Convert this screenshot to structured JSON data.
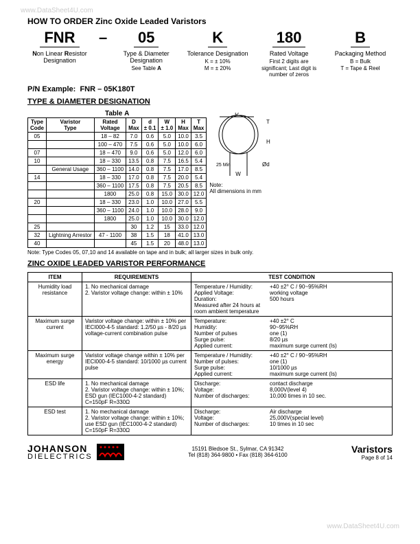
{
  "watermark": "www.DataSheet4U.com",
  "title": "HOW TO ORDER Zinc Oxide Leaded Varistors",
  "ordering": [
    {
      "code": "FNR",
      "label": "Non Linear Resistor Designation",
      "desc": ""
    },
    {
      "code": "05",
      "label": "Type & Diameter Designation",
      "desc": "See Table A"
    },
    {
      "code": "K",
      "label": "Tolerance Designation",
      "desc": "K = ± 10%\nM = ± 20%"
    },
    {
      "code": "180",
      "label": "Rated Voltage",
      "desc": "First 2 digits are significant; Last digit is number of zeros"
    },
    {
      "code": "B",
      "label": "Packaging Method",
      "desc": "B = Bulk\nT = Tape & Reel"
    }
  ],
  "pn_label": "P/N Example:",
  "pn_value": "FNR – 05K180T",
  "type_diam_title": "TYPE & DIAMETER DESIGNATION",
  "tableA_caption": "Table A",
  "tableA_headers": [
    "Type Code",
    "Varistor Type",
    "Rated Voltage",
    "D Max",
    "d ± 0.1",
    "W ± 1.0",
    "H Max",
    "T Max"
  ],
  "tableA_rows": [
    [
      "05",
      "",
      "18 – 82",
      "7.0",
      "0.6",
      "5.0",
      "10.0",
      "3.5"
    ],
    [
      "",
      "",
      "100 – 470",
      "7.5",
      "0.6",
      "5.0",
      "10.0",
      "6.0"
    ],
    [
      "07",
      "",
      "18 – 470",
      "9.0",
      "0.6",
      "5.0",
      "12.0",
      "6.0"
    ],
    [
      "10",
      "",
      "18 – 330",
      "13.5",
      "0.8",
      "7.5",
      "16.5",
      "5.4"
    ],
    [
      "",
      "General Usage",
      "360 – 1100",
      "14.0",
      "0.8",
      "7.5",
      "17.0",
      "8.5"
    ],
    [
      "14",
      "",
      "18 – 330",
      "17.0",
      "0.8",
      "7.5",
      "20.0",
      "5.4"
    ],
    [
      "",
      "",
      "360 – 1100",
      "17.5",
      "0.8",
      "7.5",
      "20.5",
      "8.5"
    ],
    [
      "",
      "",
      "1800",
      "25.0",
      "0.8",
      "15.0",
      "30.0",
      "12.0"
    ],
    [
      "20",
      "",
      "18 – 330",
      "23.0",
      "1.0",
      "10.0",
      "27.0",
      "5.5"
    ],
    [
      "",
      "",
      "360 – 1100",
      "24.0",
      "1.0",
      "10.0",
      "28.0",
      "9.0"
    ],
    [
      "",
      "",
      "1800",
      "25.0",
      "1.0",
      "10.0",
      "30.0",
      "12.0"
    ],
    [
      "25",
      "",
      "",
      "30",
      "1.2",
      "15",
      "33.0",
      "12.0"
    ],
    [
      "32",
      "Lightning Arrestor",
      "47 - 1100",
      "38",
      "1.5",
      "18",
      "41.0",
      "13.0"
    ],
    [
      "40",
      "",
      "",
      "45",
      "1.5",
      "20",
      "48.0",
      "13.0"
    ]
  ],
  "diagram_note": "Note:\nAll dimensions in mm",
  "tableA_note": "Note:  Type Codes 05, 07,10 and 14 available on tape and in bulk; all larger sizes in bulk only.",
  "perf_title": "ZINC OXIDE LEADED VARISTOR PERFORMANCE",
  "perf_headers": [
    "ITEM",
    "REQUIREMENTS",
    "TEST CONDITION"
  ],
  "perf_rows": [
    {
      "item": "Humidity load resistance",
      "req": "1. No mechanical damage\n2. Varistor voltage change: within ± 10%",
      "tc": [
        [
          "Temperature / Humidity:",
          "+40 ±2° C / 90~95%RH"
        ],
        [
          "Applied Voltage:",
          "working voltage"
        ],
        [
          "Duration:",
          "500 hours"
        ],
        [
          "Measured after 24 hours at room ambient temperature",
          ""
        ]
      ]
    },
    {
      "item": "Maximum surge current",
      "req": "Varistor voltage change: within ± 10% per IECI000-4-5 standard: 1.2/50 µs - 8/20 µs voltage-current combination pulse",
      "tc": [
        [
          "Temperature:",
          "+40 ±2° C"
        ],
        [
          "Humidity:",
          "90~95%RH"
        ],
        [
          "Number of pulses",
          "one (1)"
        ],
        [
          "Surge pulse:",
          "8/20 µs"
        ],
        [
          "Applied current:",
          "maximum surge current (Is)"
        ]
      ]
    },
    {
      "item": "Maximum surge energy",
      "req": "Varistor voltage change within ± 10% per IECI000-4-5 standard: 10/1000 µs current pulse",
      "tc": [
        [
          "Temperature / Humidity:",
          "+40 ±2° C / 90~95%RH"
        ],
        [
          "Number of pulses:",
          "one (1)"
        ],
        [
          "Surge pulse:",
          "10/1000 µs"
        ],
        [
          "Applied current:",
          "maximum surge current (Is)"
        ]
      ]
    },
    {
      "item": "ESD life",
      "req": "1. No mechanical damage\n2. Varistor voltage change: within ± 10%; ESD gun (IEC1000-4-2 standard) C=150pF R=330Ω",
      "tc": [
        [
          "Discharge:",
          "contact discharge"
        ],
        [
          "Voltage:",
          "8,000V(level 4)"
        ],
        [
          "Number of discharges:",
          "10,000 times in 10 sec."
        ]
      ]
    },
    {
      "item": "ESD test",
      "req": "1. No mechanical damage\n2. Varistor voltage change: within ± 10%; use ESD gun (IEC1000-4-2 standard) C=150pF R=330Ω",
      "tc": [
        [
          "Discharge:",
          "Air discharge"
        ],
        [
          "Voltage:",
          "25,000V(special level)"
        ],
        [
          "Number of discharges:",
          "10 times in 10 sec"
        ]
      ]
    }
  ],
  "footer": {
    "company1": "JOHANSON",
    "company2": "DIELECTRICS",
    "addr": "15191 Bledsoe St., Sylmar, CA 91342",
    "tel": "Tel (818) 364-9800 • Fax (818) 364-6100",
    "right1": "Varistors",
    "right2": "Page 8 of  14"
  }
}
